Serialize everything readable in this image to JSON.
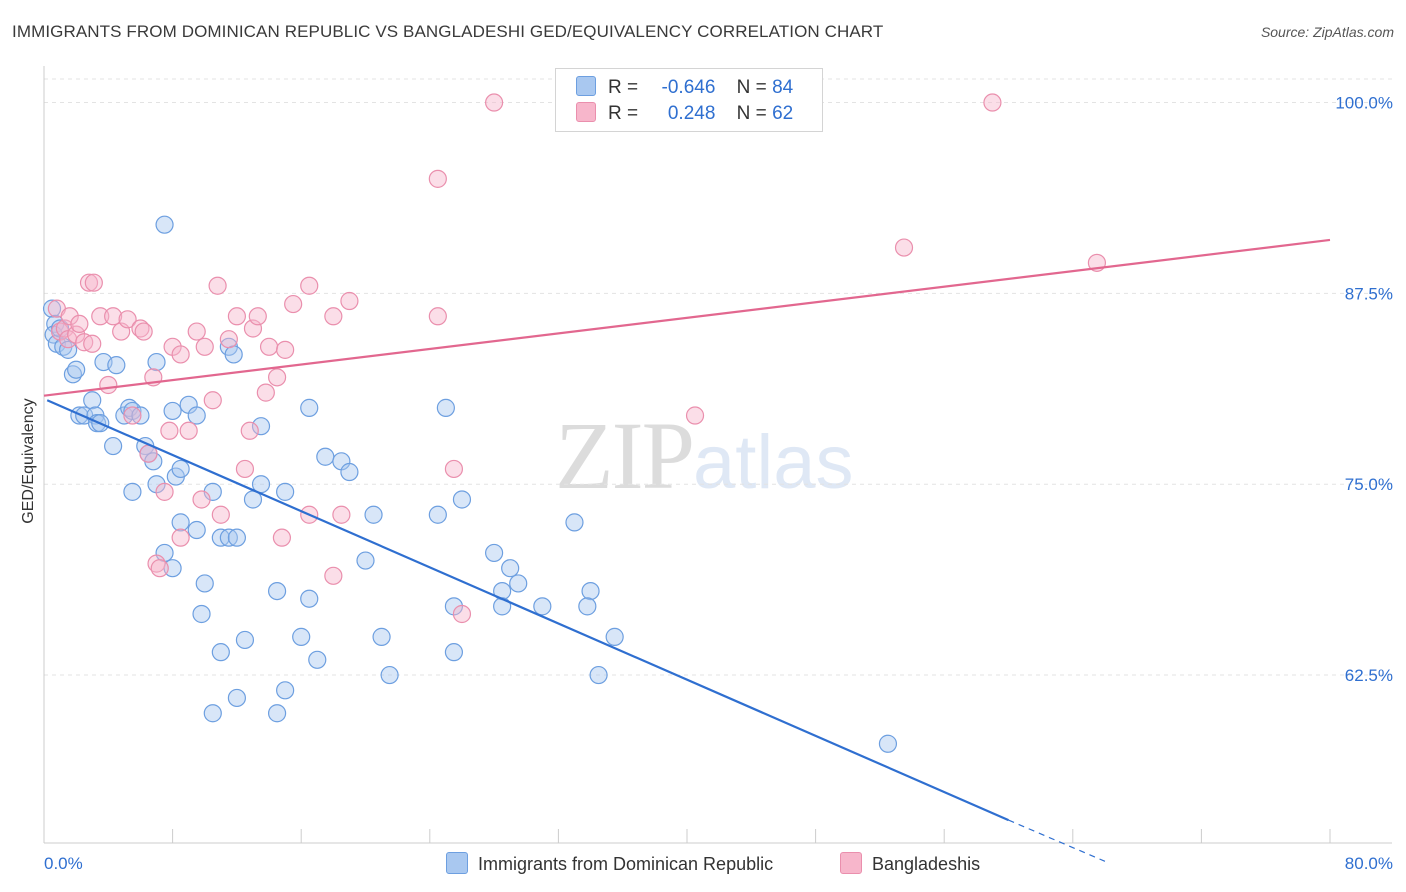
{
  "title": "IMMIGRANTS FROM DOMINICAN REPUBLIC VS BANGLADESHI GED/EQUIVALENCY CORRELATION CHART",
  "source": "Source: ZipAtlas.com",
  "watermark": {
    "zip": "ZIP",
    "atlas": "atlas"
  },
  "legend": {
    "r_label": "R =",
    "n_label": "N =",
    "rows": [
      {
        "r": "-0.646",
        "n": "84",
        "color": "#a9c8f0"
      },
      {
        "r": "0.248",
        "n": "62",
        "color": "#f7b6cb"
      }
    ]
  },
  "bottom_legend": [
    {
      "label": "Immigrants from Dominican Republic",
      "color": "#a9c8f0"
    },
    {
      "label": "Bangladeshis",
      "color": "#f7b6cb"
    }
  ],
  "chart_data": {
    "type": "scatter",
    "title": "IMMIGRANTS FROM DOMINICAN REPUBLIC VS BANGLADESHI GED/EQUIVALENCY CORRELATION CHART",
    "xlabel": "",
    "ylabel": "GED/Equivalency",
    "xlim": [
      0,
      80
    ],
    "ylim": [
      51.5,
      102
    ],
    "x_tick_labels": [
      "0.0%",
      "80.0%"
    ],
    "y_ticks": [
      62.5,
      75.0,
      87.5,
      100.0
    ],
    "y_tick_labels": [
      "62.5%",
      "75.0%",
      "87.5%",
      "100.0%"
    ],
    "grid": "horizontal dashed",
    "series": [
      {
        "name": "Immigrants from Dominican Republic",
        "color": "#a9c8f0",
        "stroke": "#6d9fe0",
        "r": -0.646,
        "n": 84,
        "trend": {
          "x0": 0.2,
          "y0": 80.5,
          "x1": 60.0,
          "y1": 53.0,
          "dash_to_x": 66.0,
          "dash_to_y": 50.3,
          "color": "#2f6fd0"
        },
        "points": [
          [
            0.5,
            86.5
          ],
          [
            0.7,
            85.5
          ],
          [
            0.6,
            84.8
          ],
          [
            0.8,
            84.2
          ],
          [
            1.0,
            85.2
          ],
          [
            1.2,
            84.0
          ],
          [
            1.5,
            83.8
          ],
          [
            1.8,
            82.2
          ],
          [
            2.0,
            82.5
          ],
          [
            2.2,
            79.5
          ],
          [
            2.5,
            79.5
          ],
          [
            3.0,
            80.5
          ],
          [
            3.2,
            79.5
          ],
          [
            3.3,
            79.0
          ],
          [
            3.5,
            79.0
          ],
          [
            3.7,
            83.0
          ],
          [
            4.5,
            82.8
          ],
          [
            5.0,
            79.5
          ],
          [
            5.3,
            80.0
          ],
          [
            4.3,
            77.5
          ],
          [
            5.5,
            79.8
          ],
          [
            6.0,
            79.5
          ],
          [
            6.3,
            77.5
          ],
          [
            6.5,
            77.0
          ],
          [
            6.8,
            76.5
          ],
          [
            7.0,
            83.0
          ],
          [
            8.0,
            79.8
          ],
          [
            7.5,
            92.0
          ],
          [
            7.0,
            75.0
          ],
          [
            5.5,
            74.5
          ],
          [
            8.2,
            75.5
          ],
          [
            8.5,
            76.0
          ],
          [
            9.0,
            80.2
          ],
          [
            9.5,
            79.5
          ],
          [
            10.5,
            74.5
          ],
          [
            8.5,
            72.5
          ],
          [
            9.5,
            72.0
          ],
          [
            11.0,
            71.5
          ],
          [
            11.5,
            71.5
          ],
          [
            12.0,
            71.5
          ],
          [
            11.5,
            84.0
          ],
          [
            11.8,
            83.5
          ],
          [
            13.5,
            78.8
          ],
          [
            13.0,
            74.0
          ],
          [
            13.5,
            75.0
          ],
          [
            15.0,
            74.5
          ],
          [
            16.5,
            80.0
          ],
          [
            17.5,
            76.8
          ],
          [
            18.5,
            76.5
          ],
          [
            19.0,
            75.8
          ],
          [
            20.0,
            70.0
          ],
          [
            20.5,
            73.0
          ],
          [
            25.0,
            80.0
          ],
          [
            24.5,
            73.0
          ],
          [
            26.0,
            74.0
          ],
          [
            8.0,
            69.5
          ],
          [
            7.5,
            70.5
          ],
          [
            10.0,
            68.5
          ],
          [
            9.8,
            66.5
          ],
          [
            14.5,
            68.0
          ],
          [
            16.5,
            67.5
          ],
          [
            16.0,
            65.0
          ],
          [
            17.0,
            63.5
          ],
          [
            12.5,
            64.8
          ],
          [
            11.0,
            64.0
          ],
          [
            15.0,
            61.5
          ],
          [
            12.0,
            61.0
          ],
          [
            10.5,
            60.0
          ],
          [
            14.5,
            60.0
          ],
          [
            21.5,
            62.5
          ],
          [
            21.0,
            65.0
          ],
          [
            25.5,
            67.0
          ],
          [
            25.5,
            64.0
          ],
          [
            28.0,
            70.5
          ],
          [
            28.5,
            68.0
          ],
          [
            29.0,
            69.5
          ],
          [
            29.5,
            68.5
          ],
          [
            28.5,
            67.0
          ],
          [
            31.0,
            67.0
          ],
          [
            33.0,
            72.5
          ],
          [
            34.0,
            68.0
          ],
          [
            33.8,
            67.0
          ],
          [
            34.5,
            62.5
          ],
          [
            35.5,
            65.0
          ],
          [
            52.5,
            58.0
          ]
        ]
      },
      {
        "name": "Bangladeshis",
        "color": "#f7b6cb",
        "stroke": "#ea8fad",
        "r": 0.248,
        "n": 62,
        "trend": {
          "x0": 0.0,
          "y0": 80.8,
          "x1": 80.0,
          "y1": 91.0,
          "color": "#e2678f"
        },
        "points": [
          [
            0.8,
            86.5
          ],
          [
            1.0,
            85.0
          ],
          [
            1.3,
            85.2
          ],
          [
            1.5,
            84.5
          ],
          [
            1.6,
            86.0
          ],
          [
            2.0,
            84.8
          ],
          [
            2.2,
            85.5
          ],
          [
            2.5,
            84.3
          ],
          [
            2.8,
            88.2
          ],
          [
            3.1,
            88.2
          ],
          [
            3.5,
            86.0
          ],
          [
            4.0,
            81.5
          ],
          [
            4.3,
            86.0
          ],
          [
            4.8,
            85.0
          ],
          [
            5.2,
            85.8
          ],
          [
            5.5,
            79.5
          ],
          [
            6.0,
            85.2
          ],
          [
            6.2,
            85.0
          ],
          [
            6.5,
            77.0
          ],
          [
            6.8,
            82.0
          ],
          [
            7.5,
            74.5
          ],
          [
            7.8,
            78.5
          ],
          [
            8.0,
            84.0
          ],
          [
            8.5,
            83.5
          ],
          [
            8.5,
            71.5
          ],
          [
            9.0,
            78.5
          ],
          [
            9.5,
            85.0
          ],
          [
            9.8,
            74.0
          ],
          [
            10.0,
            84.0
          ],
          [
            10.5,
            80.5
          ],
          [
            10.8,
            88.0
          ],
          [
            11.0,
            73.0
          ],
          [
            11.5,
            84.5
          ],
          [
            12.0,
            86.0
          ],
          [
            12.5,
            76.0
          ],
          [
            12.8,
            78.5
          ],
          [
            13.0,
            85.2
          ],
          [
            13.3,
            86.0
          ],
          [
            13.8,
            81.0
          ],
          [
            14.0,
            84.0
          ],
          [
            14.8,
            71.5
          ],
          [
            14.5,
            82.0
          ],
          [
            15.0,
            83.8
          ],
          [
            15.5,
            86.8
          ],
          [
            16.5,
            73.0
          ],
          [
            16.5,
            88.0
          ],
          [
            18.0,
            69.0
          ],
          [
            18.0,
            86.0
          ],
          [
            18.5,
            73.0
          ],
          [
            19.0,
            87.0
          ],
          [
            24.5,
            95.0
          ],
          [
            24.5,
            86.0
          ],
          [
            25.5,
            76.0
          ],
          [
            26.0,
            66.5
          ],
          [
            28.0,
            100.0
          ],
          [
            7.0,
            69.8
          ],
          [
            7.2,
            69.5
          ],
          [
            40.5,
            79.5
          ],
          [
            53.5,
            90.5
          ],
          [
            59.0,
            100.0
          ],
          [
            65.5,
            89.5
          ],
          [
            3.0,
            84.2
          ]
        ]
      }
    ]
  }
}
